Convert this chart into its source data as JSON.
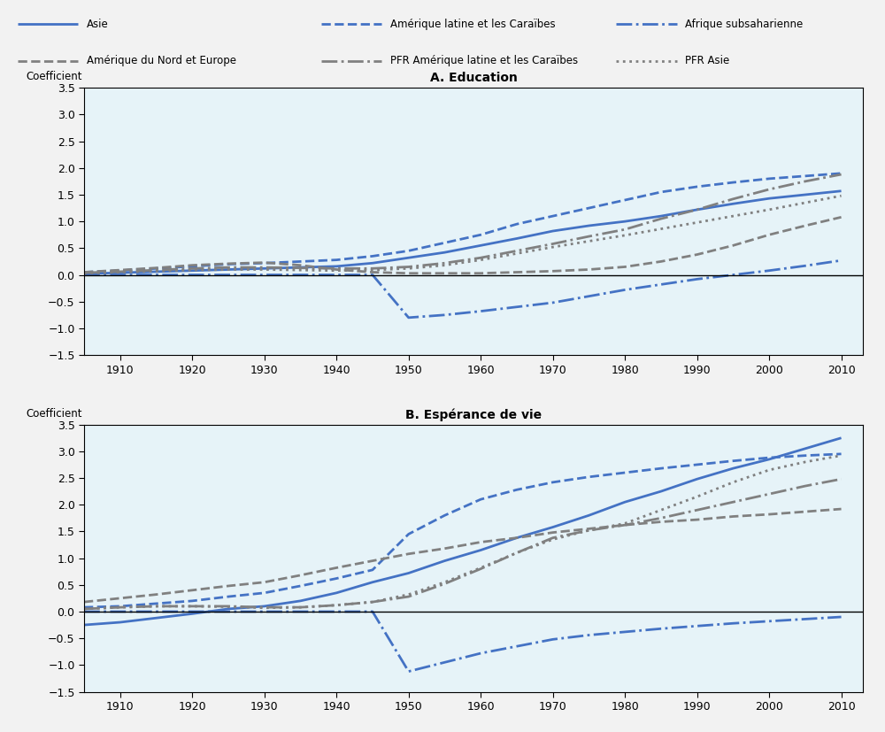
{
  "title_A": "A. Education",
  "title_B": "B. Espérance de vie",
  "ylabel": "Coefficient",
  "x_ticks": [
    1910,
    1920,
    1930,
    1940,
    1950,
    1960,
    1970,
    1980,
    1990,
    2000,
    2010
  ],
  "ylim": [
    -1.5,
    3.5
  ],
  "y_ticks": [
    -1.5,
    -1.0,
    -0.5,
    0.0,
    0.5,
    1.0,
    1.5,
    2.0,
    2.5,
    3.0,
    3.5
  ],
  "background_color": "#e6f3f8",
  "fig_background": "#f2f2f2",
  "series": [
    {
      "label": "Asie",
      "color": "#4472c4",
      "linestyle": "solid",
      "linewidth": 2.0,
      "dashes": null
    },
    {
      "label": "Amérique latine et les Caraïbes",
      "color": "#4472c4",
      "linestyle": "dashed",
      "linewidth": 2.0,
      "dashes": [
        8,
        4
      ]
    },
    {
      "label": "Afrique subsaharienne",
      "color": "#4472c4",
      "linestyle": "dashdot",
      "linewidth": 2.0,
      "dashes": [
        8,
        3,
        2,
        3
      ]
    },
    {
      "label": "Amérique du Nord et Europe",
      "color": "#808080",
      "linestyle": "dashed",
      "linewidth": 2.0,
      "dashes": [
        8,
        4
      ]
    },
    {
      "label": "PFR Amérique latine et les Caraïbes",
      "color": "#808080",
      "linestyle": "dashdot",
      "linewidth": 2.0,
      "dashes": [
        8,
        3,
        2,
        3
      ]
    },
    {
      "label": "PFR Asie",
      "color": "#808080",
      "linestyle": "dotted",
      "linewidth": 2.0,
      "dashes": [
        2,
        2
      ]
    }
  ],
  "edu_x": [
    1905,
    1910,
    1915,
    1920,
    1925,
    1930,
    1935,
    1940,
    1945,
    1950,
    1955,
    1960,
    1965,
    1970,
    1975,
    1980,
    1985,
    1990,
    1995,
    2000,
    2005,
    2010
  ],
  "edu_asie": [
    0.02,
    0.04,
    0.06,
    0.08,
    0.1,
    0.12,
    0.14,
    0.16,
    0.22,
    0.32,
    0.42,
    0.55,
    0.68,
    0.82,
    0.92,
    1.0,
    1.1,
    1.22,
    1.33,
    1.43,
    1.5,
    1.57
  ],
  "edu_amlat": [
    0.05,
    0.08,
    0.12,
    0.16,
    0.2,
    0.22,
    0.25,
    0.28,
    0.35,
    0.45,
    0.6,
    0.75,
    0.95,
    1.1,
    1.25,
    1.4,
    1.55,
    1.65,
    1.73,
    1.8,
    1.85,
    1.9
  ],
  "edu_afrsub": [
    0.0,
    0.0,
    0.0,
    0.0,
    0.0,
    0.0,
    0.0,
    0.0,
    0.0,
    -0.8,
    -0.75,
    -0.68,
    -0.6,
    -0.52,
    -0.4,
    -0.28,
    -0.18,
    -0.08,
    0.0,
    0.08,
    0.17,
    0.27
  ],
  "edu_nordeur": [
    0.05,
    0.09,
    0.13,
    0.18,
    0.21,
    0.23,
    0.18,
    0.1,
    0.05,
    0.03,
    0.03,
    0.03,
    0.05,
    0.07,
    0.1,
    0.15,
    0.25,
    0.38,
    0.55,
    0.75,
    0.92,
    1.08
  ],
  "edu_pframlat": [
    0.04,
    0.06,
    0.09,
    0.12,
    0.14,
    0.14,
    0.13,
    0.12,
    0.12,
    0.15,
    0.22,
    0.32,
    0.45,
    0.58,
    0.72,
    0.85,
    1.05,
    1.22,
    1.42,
    1.6,
    1.75,
    1.88
  ],
  "edu_pfrasie": [
    0.03,
    0.05,
    0.07,
    0.09,
    0.1,
    0.1,
    0.09,
    0.08,
    0.09,
    0.12,
    0.18,
    0.28,
    0.4,
    0.52,
    0.63,
    0.74,
    0.86,
    0.98,
    1.1,
    1.22,
    1.35,
    1.48
  ],
  "life_x": [
    1905,
    1910,
    1915,
    1920,
    1925,
    1930,
    1935,
    1940,
    1945,
    1950,
    1955,
    1960,
    1965,
    1970,
    1975,
    1980,
    1985,
    1990,
    1995,
    2000,
    2005,
    2010
  ],
  "life_asie": [
    -0.25,
    -0.2,
    -0.12,
    -0.04,
    0.05,
    0.1,
    0.2,
    0.35,
    0.55,
    0.72,
    0.95,
    1.15,
    1.38,
    1.58,
    1.8,
    2.05,
    2.25,
    2.48,
    2.68,
    2.85,
    3.05,
    3.25
  ],
  "life_amlat": [
    0.08,
    0.1,
    0.15,
    0.2,
    0.28,
    0.35,
    0.48,
    0.62,
    0.78,
    1.45,
    1.8,
    2.1,
    2.28,
    2.42,
    2.52,
    2.6,
    2.68,
    2.75,
    2.82,
    2.88,
    2.92,
    2.95
  ],
  "life_afrsub": [
    0.0,
    0.0,
    0.0,
    0.0,
    0.0,
    0.0,
    0.0,
    0.0,
    0.0,
    -1.12,
    -0.95,
    -0.78,
    -0.65,
    -0.52,
    -0.44,
    -0.38,
    -0.32,
    -0.27,
    -0.22,
    -0.18,
    -0.14,
    -0.1
  ],
  "life_nordeur": [
    0.18,
    0.25,
    0.32,
    0.4,
    0.48,
    0.55,
    0.68,
    0.82,
    0.95,
    1.08,
    1.18,
    1.3,
    1.38,
    1.48,
    1.55,
    1.62,
    1.68,
    1.72,
    1.78,
    1.82,
    1.87,
    1.92
  ],
  "life_pframlat": [
    0.05,
    0.08,
    0.1,
    0.1,
    0.1,
    0.08,
    0.08,
    0.12,
    0.18,
    0.28,
    0.52,
    0.8,
    1.1,
    1.38,
    1.52,
    1.62,
    1.75,
    1.9,
    2.05,
    2.2,
    2.35,
    2.48
  ],
  "life_pfrasie": [
    0.05,
    0.08,
    0.1,
    0.1,
    0.09,
    0.07,
    0.08,
    0.12,
    0.18,
    0.32,
    0.55,
    0.82,
    1.1,
    1.35,
    1.52,
    1.65,
    1.9,
    2.15,
    2.42,
    2.65,
    2.8,
    2.92
  ]
}
